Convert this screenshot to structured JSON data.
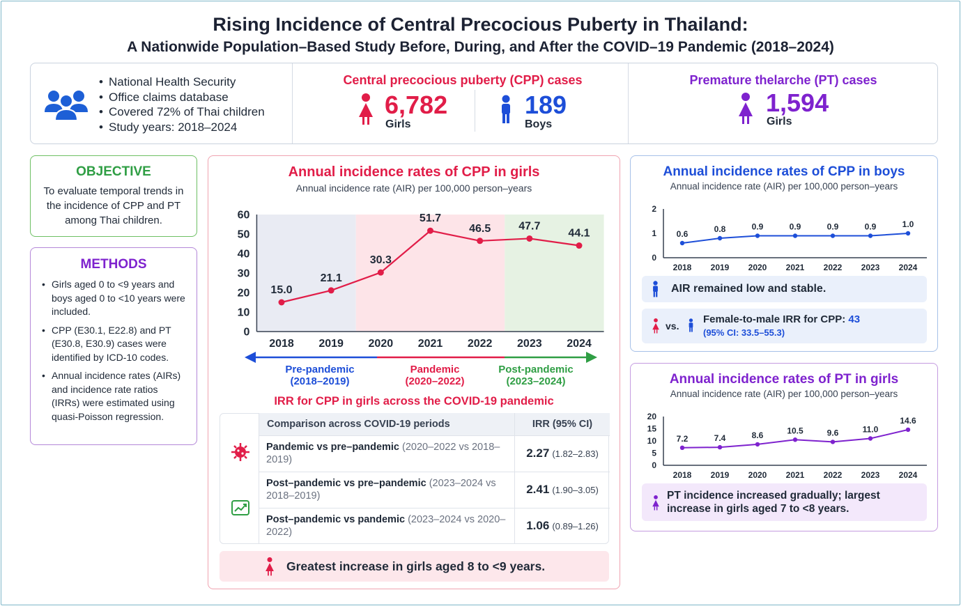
{
  "title_line1": "Rising Incidence of Central Precocious Puberty in Thailand:",
  "title_line2": "A Nationwide Population–Based Study Before, During, and After the COVID–19 Pandemic (2018–2024)",
  "overview": {
    "bullets": [
      "National Health Security",
      "Office claims database",
      "Covered 72% of Thai children",
      "Study years: 2018–2024"
    ],
    "cpp_title": "Central precocious puberty (CPP) cases",
    "cpp_girls_value": "6,782",
    "cpp_girls_label": "Girls",
    "cpp_boys_value": "189",
    "cpp_boys_label": "Boys",
    "pt_title": "Premature thelarche (PT) cases",
    "pt_girls_value": "1,594",
    "pt_girls_label": "Girls"
  },
  "objective": {
    "title": "OBJECTIVE",
    "text": "To evaluate temporal trends in the incidence of CPP and PT among Thai children."
  },
  "methods": {
    "title": "METHODS",
    "items": [
      "Girls aged 0 to <9 years and boys aged 0 to <10 years were included.",
      "CPP (E30.1, E22.8) and PT (E30.8, E30.9) cases were identified by ICD-10 codes.",
      "Annual incidence rates (AIRs) and incidence rate ratios (IRRs) were estimated using quasi-Poisson regression."
    ]
  },
  "girls_panel": {
    "title": "Annual incidence rates of CPP in girls",
    "subtitle": "Annual incidence rate (AIR) per 100,000 person–years",
    "periods": [
      {
        "name": "Pre-pandemic",
        "years": "(2018–2019)"
      },
      {
        "name": "Pandemic",
        "years": "(2020–2022)"
      },
      {
        "name": "Post-pandemic",
        "years": "(2023–2024)"
      }
    ],
    "irr_title": "IRR for CPP in girls across the COVID-19 pandemic",
    "table_header": [
      "Comparison across COVID-19 periods",
      "IRR (95% CI)"
    ],
    "rows": [
      {
        "label": "Pandemic vs pre–pandemic",
        "detail": "(2020–2022 vs 2018–2019)",
        "irr": "2.27",
        "ci": "(1.82–2.83)"
      },
      {
        "label": "Post–pandemic vs pre–pandemic",
        "detail": "(2023–2024 vs 2018–2019)",
        "irr": "2.41",
        "ci": "(1.90–3.05)"
      },
      {
        "label": "Post–pandemic vs pandemic",
        "detail": "(2023–2024 vs 2020–2022)",
        "irr": "1.06",
        "ci": "(0.89–1.26)"
      }
    ],
    "footer": "Greatest increase in girls aged 8 to <9 years."
  },
  "boys_panel": {
    "title": "Annual incidence rates of CPP in boys",
    "subtitle": "Annual incidence rate (AIR) per 100,000 person–years",
    "note1": "AIR remained low and stable.",
    "vs": "vs.",
    "note2_label": "Female-to-male IRR for CPP: ",
    "note2_value": "43",
    "note2_ci": "(95% CI: 33.5–55.3)"
  },
  "pt_panel": {
    "title": "Annual incidence rates of PT in girls",
    "subtitle": "Annual incidence rate (AIR) per 100,000 person–years",
    "note": "PT incidence increased gradually; largest increase in girls aged 7 to <8 years."
  },
  "colors": {
    "red": "#e11d48",
    "blue": "#1d4ed8",
    "purple": "#7e22ce",
    "green": "#2f9e44",
    "pre_band": "#e9ebf3",
    "pandemic_band": "#fde4e8",
    "post_band": "#e6f2e3"
  },
  "chart_data": [
    {
      "type": "line",
      "title": "Annual incidence rates of CPP in girls",
      "subtitle": "Annual incidence rate (AIR) per 100,000 person–years",
      "x": [
        "2018",
        "2019",
        "2020",
        "2021",
        "2022",
        "2023",
        "2024"
      ],
      "series": [
        {
          "values": [
            15.0,
            21.1,
            30.3,
            51.7,
            46.5,
            47.7,
            44.1
          ]
        }
      ],
      "labels": [
        "15.0",
        "21.1",
        "30.3",
        "51.7",
        "46.5",
        "47.7",
        "44.1"
      ],
      "ylim": [
        0,
        60
      ],
      "yticks": [
        "0",
        "10",
        "20",
        "30",
        "40",
        "50",
        "60"
      ],
      "grid": false
    },
    {
      "type": "line",
      "title": "Annual incidence rates of CPP in boys",
      "x": [
        "2018",
        "2019",
        "2020",
        "2021",
        "2022",
        "2023",
        "2024"
      ],
      "series": [
        {
          "values": [
            0.6,
            0.8,
            0.9,
            0.9,
            0.9,
            0.9,
            1.0
          ]
        }
      ],
      "labels": [
        "0.6",
        "0.8",
        "0.9",
        "0.9",
        "0.9",
        "0.9",
        "1.0"
      ],
      "ylim": [
        0,
        2
      ],
      "yticks": [
        "0",
        "1",
        "2"
      ],
      "grid": false
    },
    {
      "type": "line",
      "title": "Annual incidence rates of PT in girls",
      "x": [
        "2018",
        "2019",
        "2020",
        "2021",
        "2022",
        "2023",
        "2024"
      ],
      "series": [
        {
          "values": [
            7.2,
            7.4,
            8.6,
            10.5,
            9.6,
            11.0,
            14.6
          ]
        }
      ],
      "labels": [
        "7.2",
        "7.4",
        "8.6",
        "10.5",
        "9.6",
        "11.0",
        "14.6"
      ],
      "ylim": [
        0,
        20
      ],
      "yticks": [
        "0",
        "5",
        "10",
        "15",
        "20"
      ],
      "grid": false
    }
  ]
}
